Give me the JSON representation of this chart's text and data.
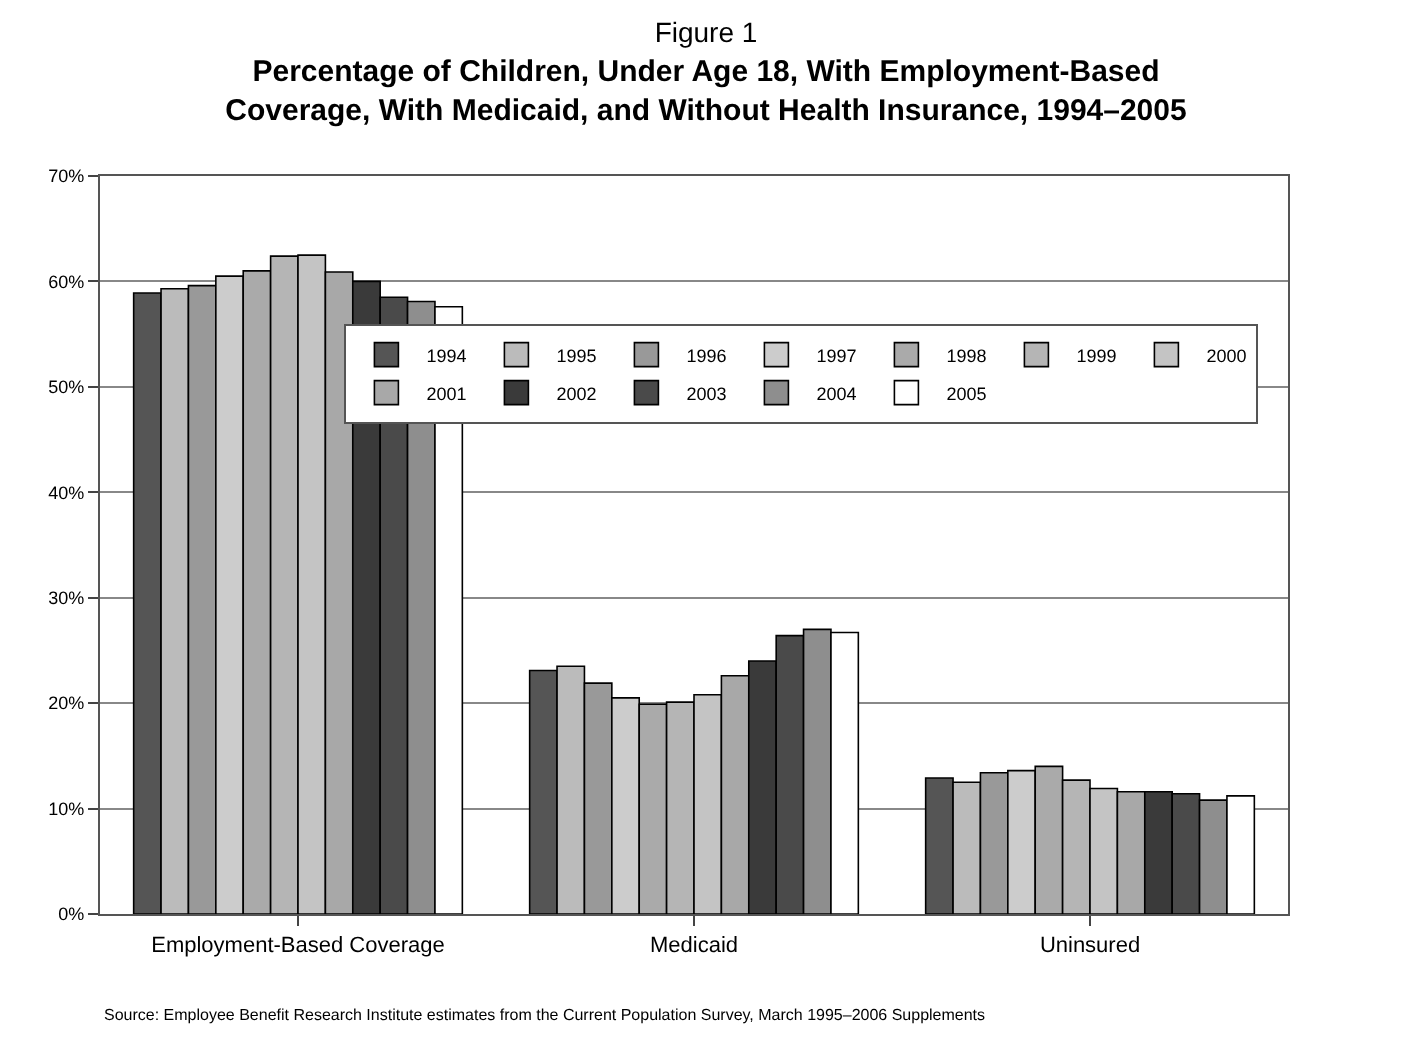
{
  "chart_data": {
    "type": "bar",
    "title": "Figure 1",
    "subtitle": "Percentage of Children, Under Age 18, With Employment-Based\nCoverage, With Medicaid, and Without Health Insurance, 1994–2005",
    "categories": [
      "Employment-Based Coverage",
      "Medicaid",
      "Uninsured"
    ],
    "series": [
      {
        "name": "1994",
        "color": "#555555",
        "values": [
          58.9,
          23.1,
          12.9
        ]
      },
      {
        "name": "1995",
        "color": "#bbbbbb",
        "values": [
          59.3,
          23.5,
          12.5
        ]
      },
      {
        "name": "1996",
        "color": "#999999",
        "values": [
          59.6,
          21.9,
          13.4
        ]
      },
      {
        "name": "1997",
        "color": "#cccccc",
        "values": [
          60.5,
          20.5,
          13.6
        ]
      },
      {
        "name": "1998",
        "color": "#aaaaaa",
        "values": [
          61.0,
          19.9,
          14.0
        ]
      },
      {
        "name": "1999",
        "color": "#b5b5b5",
        "values": [
          62.4,
          20.1,
          12.7
        ]
      },
      {
        "name": "2000",
        "color": "#c4c4c4",
        "values": [
          62.5,
          20.8,
          11.9
        ]
      },
      {
        "name": "2001",
        "color": "#a8a8a8",
        "values": [
          60.9,
          22.6,
          11.6
        ]
      },
      {
        "name": "2002",
        "color": "#3a3a3a",
        "values": [
          60.0,
          24.0,
          11.6
        ]
      },
      {
        "name": "2003",
        "color": "#4a4a4a",
        "values": [
          58.5,
          26.4,
          11.4
        ]
      },
      {
        "name": "2004",
        "color": "#8e8e8e",
        "values": [
          58.1,
          27.0,
          10.8
        ]
      },
      {
        "name": "2005",
        "color": "#ffffff",
        "values": [
          57.6,
          26.7,
          11.2
        ]
      }
    ],
    "ylim": [
      0,
      70
    ],
    "yticks": [
      {
        "value": 0,
        "label": "0%"
      },
      {
        "value": 10,
        "label": "10%"
      },
      {
        "value": 20,
        "label": "20%"
      },
      {
        "value": 30,
        "label": "30%"
      },
      {
        "value": 40,
        "label": "40%"
      },
      {
        "value": 50,
        "label": "50%"
      },
      {
        "value": 60,
        "label": "60%"
      },
      {
        "value": 70,
        "label": "70%"
      }
    ],
    "grid": "y",
    "legend": "top right",
    "annotations": [
      "Source: Employee Benefit Research Institute estimates from the Current Population Survey, March 1995–2006 Supplements"
    ]
  }
}
